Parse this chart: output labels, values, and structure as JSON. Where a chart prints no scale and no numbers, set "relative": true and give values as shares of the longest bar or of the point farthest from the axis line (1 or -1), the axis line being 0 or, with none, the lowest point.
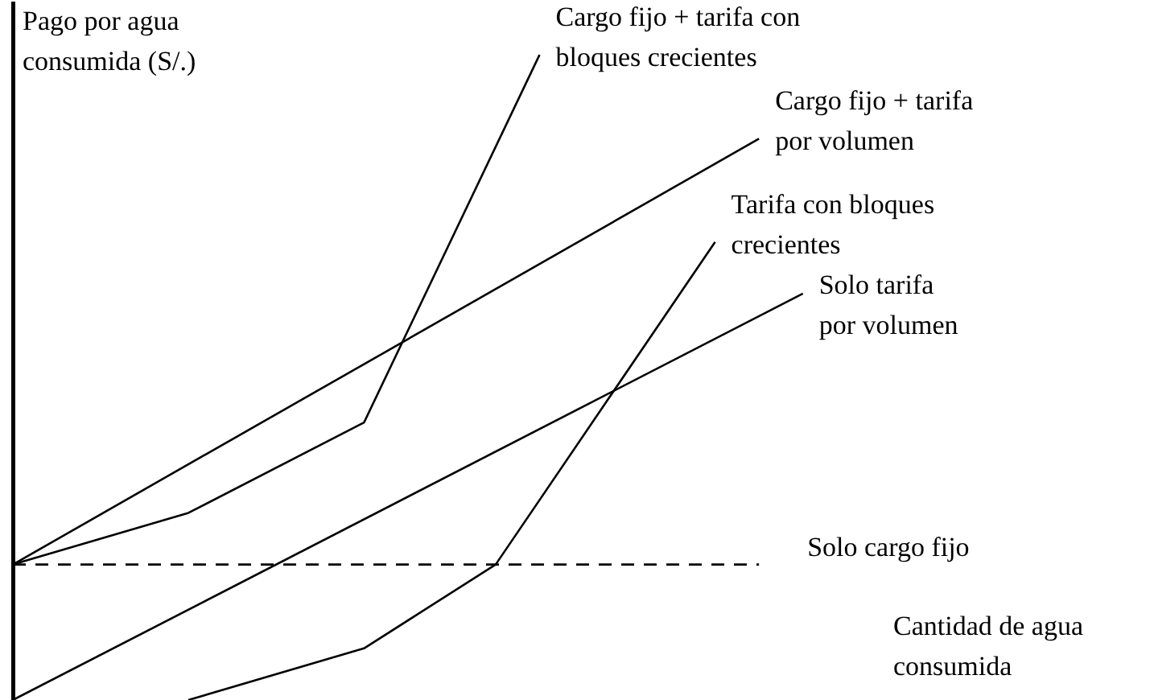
{
  "chart_data": {
    "type": "line",
    "relative": true,
    "ylabel": "Pago por agua\nconsumida (S/.)",
    "xlabel": "Cantidad de agua\nconsumida",
    "grid": false,
    "legend": false,
    "marker": "none",
    "categories": [
      null,
      null,
      null,
      null,
      null,
      null,
      null,
      null,
      null,
      null,
      null,
      null,
      null,
      null,
      null,
      null,
      null,
      null,
      null,
      null,
      null,
      null,
      null,
      null,
      null,
      null,
      null
    ],
    "series": [
      {
        "name": "Cargo fijo + tarifa con\nbloques crecientes",
        "color": "#000000",
        "values": [
          0.21,
          null,
          null,
          null,
          0.29,
          null,
          null,
          null,
          0.43,
          null,
          null,
          null,
          1,
          null,
          null,
          null,
          null,
          null,
          null,
          null,
          null,
          null,
          null,
          null,
          null,
          null,
          null
        ]
      },
      {
        "name": "Cargo fijo + tarifa\npor volumen",
        "color": "#000000",
        "values": [
          0.21,
          null,
          null,
          null,
          null,
          null,
          null,
          null,
          null,
          null,
          null,
          null,
          null,
          null,
          null,
          null,
          null,
          0.87,
          null,
          null,
          null,
          null,
          null,
          null,
          null,
          null,
          null
        ]
      },
      {
        "name": "Tarifa con bloques\ncrecientes",
        "color": "#000000",
        "values": [
          null,
          null,
          null,
          null,
          0,
          null,
          null,
          null,
          0.08,
          null,
          null,
          0.21,
          null,
          null,
          null,
          null,
          0.71,
          null,
          null,
          null,
          null,
          null,
          null,
          null,
          null,
          null,
          null
        ]
      },
      {
        "name": "Solo tarifa\npor volumen",
        "color": "#000000",
        "values": [
          0,
          null,
          null,
          null,
          null,
          null,
          null,
          null,
          null,
          null,
          null,
          null,
          null,
          null,
          null,
          null,
          null,
          null,
          0.63,
          null,
          null,
          null,
          null,
          null,
          null,
          null,
          null
        ]
      },
      {
        "name": "Solo cargo fijo",
        "color": "#000000",
        "line_style": "dashed",
        "values": [
          0.21,
          null,
          null,
          null,
          null,
          null,
          null,
          null,
          null,
          null,
          null,
          null,
          null,
          null,
          null,
          null,
          null,
          0.21,
          null,
          null,
          null,
          null,
          null,
          null,
          null,
          null,
          null
        ]
      }
    ]
  }
}
